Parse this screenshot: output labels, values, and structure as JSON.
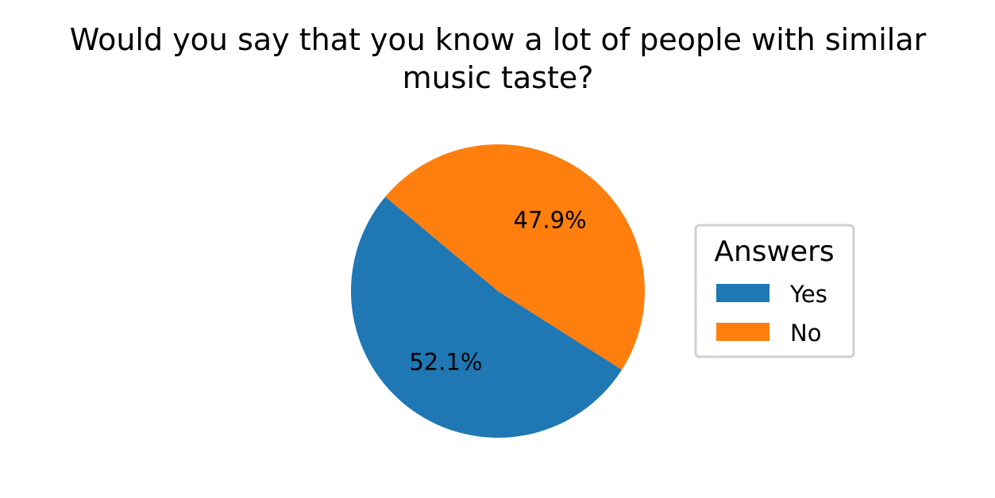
{
  "chart_data": {
    "type": "pie",
    "title_lines": [
      "Would you say that you know  a lot of people with similar",
      "music taste?"
    ],
    "categories": [
      "Yes",
      "No"
    ],
    "values": [
      52.1,
      47.9
    ],
    "labels": [
      "52.1%",
      "47.9%"
    ],
    "colors": [
      "#1f77b4",
      "#ff7f0e"
    ],
    "legend": {
      "title": "Answers",
      "placement": "right"
    }
  }
}
